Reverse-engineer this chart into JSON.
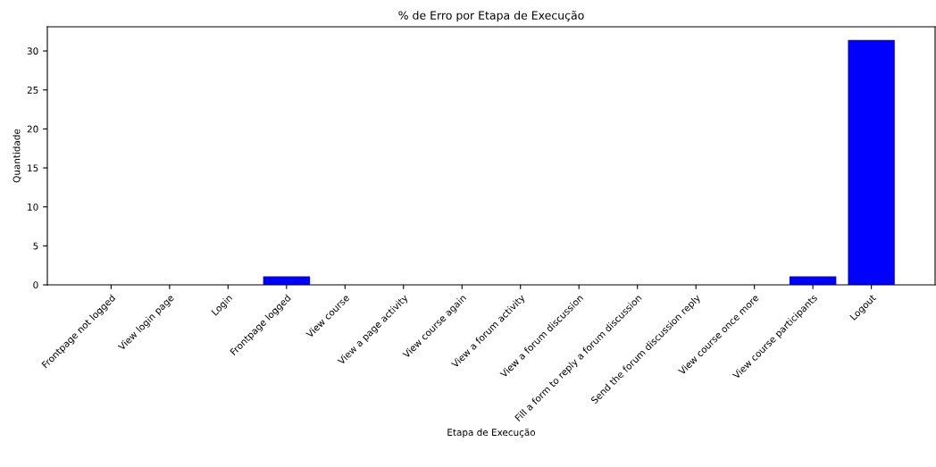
{
  "chart_data": {
    "type": "bar",
    "title": "% de Erro por Etapa de Execução",
    "xlabel": "Etapa de Execução",
    "ylabel": "Quantidade",
    "categories": [
      "Frontpage not logged",
      "View login page",
      "Login",
      "Frontpage logged",
      "View course",
      "View a page activity",
      "View course again",
      "View a forum activity",
      "View a forum discussion",
      "Fill a form to reply a forum discussion",
      "Send the forum discussion reply",
      "View course once more",
      "View course participants",
      "Logout"
    ],
    "values": [
      0,
      0,
      0,
      1.1,
      0,
      0,
      0,
      0,
      0,
      0,
      0,
      0,
      1.1,
      31.4
    ],
    "color": "#0000ff",
    "ylim": [
      0,
      33.1
    ],
    "yticks": [
      0,
      5,
      10,
      15,
      20,
      25,
      30
    ],
    "grid": false
  }
}
